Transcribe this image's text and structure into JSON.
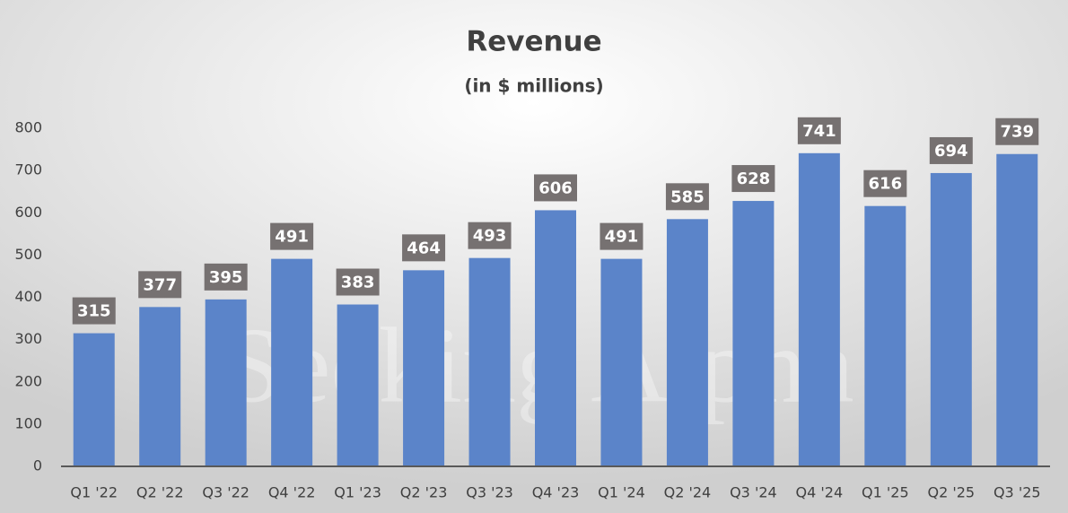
{
  "chart_data": {
    "type": "bar",
    "title": "Revenue",
    "subtitle": "(in $ millions)",
    "watermark": "Seeking Alpha",
    "categories": [
      "Q1 '22",
      "Q2 '22",
      "Q3 '22",
      "Q4 '22",
      "Q1 '23",
      "Q2 '23",
      "Q3 '23",
      "Q4 '23",
      "Q1 '24",
      "Q2 '24",
      "Q3 '24",
      "Q4 '24",
      "Q1 '25",
      "Q2 '25",
      "Q3 '25"
    ],
    "values": [
      315,
      377,
      395,
      491,
      383,
      464,
      493,
      606,
      491,
      585,
      628,
      741,
      616,
      694,
      739
    ],
    "color": "#5b84c9",
    "label_box_color": "#767171",
    "ylim": [
      0,
      800
    ],
    "yticks": [
      0,
      100,
      200,
      300,
      400,
      500,
      600,
      700,
      800
    ],
    "grid": false
  }
}
